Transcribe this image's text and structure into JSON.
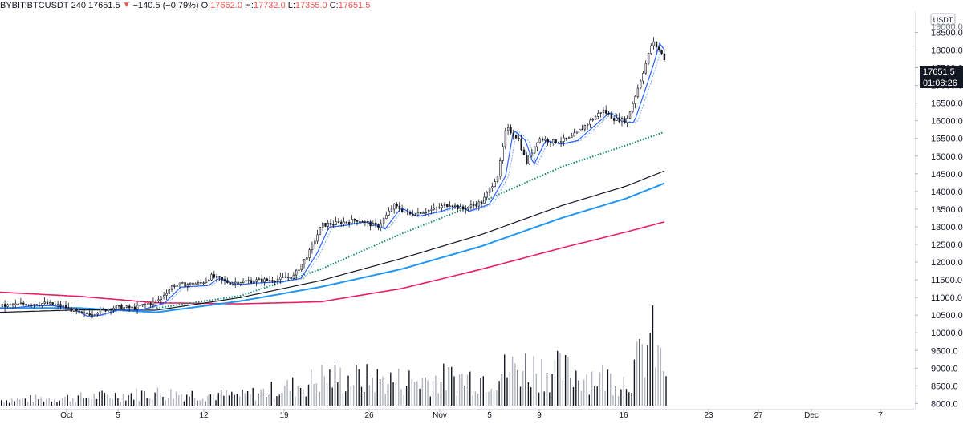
{
  "header": {
    "symbol": "BYBIT:BTCUSDT",
    "interval": "240",
    "last": "17651.5",
    "change_arrow": "▼",
    "change": "−140.5 (−0.79%)",
    "open_label": "O:",
    "open": "17662.0",
    "high_label": "H:",
    "high": "17732.0",
    "low_label": "L:",
    "low": "17355.0",
    "close_label": "C:",
    "close": "17651.5"
  },
  "price_axis": {
    "currency": "USDT",
    "ticks": [
      "18500.0",
      "18000.0",
      "17500.0",
      "17000.0",
      "16500.0",
      "16000.0",
      "15500.0",
      "15000.0",
      "14500.0",
      "14000.0",
      "13500.0",
      "13000.0",
      "12500.0",
      "12000.0",
      "11500.0",
      "11000.0",
      "10500.0",
      "10000.0",
      "9500.0",
      "9000.0",
      "8500.0",
      "8000.0"
    ],
    "top_partial_tick": "19000.0",
    "last_price_label": "17651.5",
    "countdown_label": "01:08:26"
  },
  "time_axis": {
    "ticks": [
      "Oct",
      "5",
      "12",
      "19",
      "26",
      "Nov",
      "5",
      "9",
      "16",
      "23",
      "27",
      "Dec",
      "7"
    ]
  },
  "colors": {
    "candle": "#131722",
    "ema_fast": "#2962ff",
    "ema_slow": "#7faaf0",
    "ma_green": "#0e8a6b",
    "ma_black": "#131722",
    "ma_blue": "#2196f3",
    "ma_pink": "#e91e63",
    "volume_dark": "#131722",
    "volume_light": "#b2b5be",
    "label_bg": "#131722"
  },
  "chart_data": {
    "type": "candlestick",
    "title": "BYBIT:BTCUSDT, 240",
    "ylabel": "USDT",
    "ylim": [
      7850,
      19100
    ],
    "volume_overlay": true,
    "moving_averages": [
      "ema_fast",
      "ema_slow",
      "ma_green_dotted",
      "ma_black",
      "ma_blue",
      "ma_pink"
    ],
    "x_ticks": [
      "Oct",
      "5",
      "12",
      "19",
      "26",
      "Nov",
      "5",
      "9",
      "16",
      "23",
      "27",
      "Dec",
      "7"
    ],
    "y_ticks": [
      8000,
      8500,
      9000,
      9500,
      10000,
      10500,
      11000,
      11500,
      12000,
      12500,
      13000,
      13500,
      14000,
      14500,
      15000,
      15500,
      16000,
      16500,
      17000,
      17500,
      18000,
      18500
    ],
    "price_anchors": [
      [
        0,
        10750
      ],
      [
        30,
        10820
      ],
      [
        55,
        10830
      ],
      [
        80,
        10740
      ],
      [
        100,
        10520
      ],
      [
        115,
        10560
      ],
      [
        140,
        10720
      ],
      [
        165,
        10700
      ],
      [
        195,
        10900
      ],
      [
        215,
        11350
      ],
      [
        250,
        11400
      ],
      [
        262,
        11600
      ],
      [
        285,
        11420
      ],
      [
        310,
        11470
      ],
      [
        340,
        11500
      ],
      [
        365,
        11600
      ],
      [
        385,
        12300
      ],
      [
        400,
        13050
      ],
      [
        420,
        13100
      ],
      [
        445,
        13200
      ],
      [
        470,
        13000
      ],
      [
        490,
        13600
      ],
      [
        510,
        13350
      ],
      [
        540,
        13500
      ],
      [
        560,
        13650
      ],
      [
        575,
        13500
      ],
      [
        600,
        13700
      ],
      [
        620,
        14500
      ],
      [
        630,
        15800
      ],
      [
        645,
        15500
      ],
      [
        655,
        14800
      ],
      [
        670,
        15500
      ],
      [
        690,
        15400
      ],
      [
        710,
        15500
      ],
      [
        730,
        15900
      ],
      [
        750,
        16300
      ],
      [
        765,
        16050
      ],
      [
        780,
        16000
      ],
      [
        795,
        17000
      ],
      [
        805,
        17700
      ],
      [
        812,
        18250
      ],
      [
        822,
        17950
      ],
      [
        830,
        17651.5
      ]
    ],
    "moving_average_anchors": {
      "ma_pink": [
        [
          0,
          11150
        ],
        [
          100,
          11030
        ],
        [
          195,
          10850
        ],
        [
          300,
          10820
        ],
        [
          400,
          10880
        ],
        [
          500,
          11250
        ],
        [
          600,
          11800
        ],
        [
          700,
          12400
        ],
        [
          780,
          12850
        ],
        [
          830,
          13150
        ]
      ],
      "ma_blue": [
        [
          0,
          10700
        ],
        [
          100,
          10700
        ],
        [
          195,
          10580
        ],
        [
          300,
          10900
        ],
        [
          400,
          11300
        ],
        [
          500,
          11800
        ],
        [
          600,
          12450
        ],
        [
          700,
          13250
        ],
        [
          780,
          13800
        ],
        [
          830,
          14250
        ]
      ],
      "ma_black": [
        [
          0,
          10580
        ],
        [
          100,
          10650
        ],
        [
          195,
          10640
        ],
        [
          300,
          11000
        ],
        [
          400,
          11480
        ],
        [
          500,
          12100
        ],
        [
          600,
          12780
        ],
        [
          700,
          13600
        ],
        [
          780,
          14150
        ],
        [
          830,
          14600
        ]
      ],
      "ma_green_dotted": [
        [
          195,
          10700
        ],
        [
          300,
          11050
        ],
        [
          400,
          11800
        ],
        [
          500,
          12800
        ],
        [
          600,
          13700
        ],
        [
          700,
          14700
        ],
        [
          780,
          15300
        ],
        [
          830,
          15700
        ]
      ]
    },
    "volume_scale_max": 100,
    "volume_anchors": [
      [
        0,
        8
      ],
      [
        100,
        12
      ],
      [
        195,
        18
      ],
      [
        300,
        14
      ],
      [
        380,
        30
      ],
      [
        400,
        40
      ],
      [
        500,
        35
      ],
      [
        600,
        40
      ],
      [
        650,
        55
      ],
      [
        720,
        45
      ],
      [
        780,
        35
      ],
      [
        800,
        70
      ],
      [
        812,
        100
      ],
      [
        822,
        60
      ],
      [
        830,
        55
      ]
    ]
  }
}
